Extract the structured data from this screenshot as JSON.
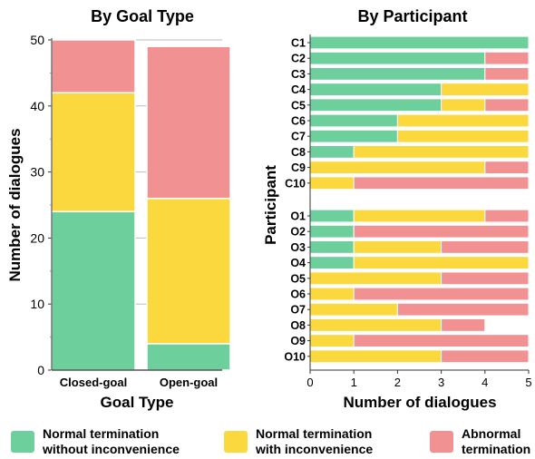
{
  "colors": {
    "normal_no_inconvenience": "#6ccf9c",
    "normal_with_inconvenience": "#fbd93e",
    "abnormal": "#f29192"
  },
  "legend": [
    {
      "key": "normal_no_inconvenience",
      "line1": "Normal termination",
      "line2": "without inconvenience"
    },
    {
      "key": "normal_with_inconvenience",
      "line1": "Normal termination",
      "line2": "with inconvenience"
    },
    {
      "key": "abnormal",
      "line1": "Abnormal",
      "line2": "termination"
    }
  ],
  "chart_data": [
    {
      "type": "bar",
      "stacked": true,
      "orientation": "vertical",
      "title": "By Goal Type",
      "xlabel": "Goal Type",
      "ylabel": "Number of dialogues",
      "ylim": [
        0,
        50
      ],
      "yticks": [
        0,
        10,
        20,
        30,
        40,
        50
      ],
      "grid": true,
      "categories": [
        "Closed-goal",
        "Open-goal"
      ],
      "series": [
        {
          "key": "normal_no_inconvenience",
          "values": [
            24,
            4
          ]
        },
        {
          "key": "normal_with_inconvenience",
          "values": [
            18,
            22
          ]
        },
        {
          "key": "abnormal",
          "values": [
            8,
            23
          ]
        }
      ]
    },
    {
      "type": "bar",
      "stacked": true,
      "orientation": "horizontal",
      "title": "By Participant",
      "xlabel": "Number of dialogues",
      "ylabel": "Participant",
      "xlim": [
        0,
        5
      ],
      "xticks": [
        0,
        1,
        2,
        3,
        4,
        5
      ],
      "grid": false,
      "categories": [
        "C1",
        "C2",
        "C3",
        "C4",
        "C5",
        "C6",
        "C7",
        "C8",
        "C9",
        "C10",
        "O1",
        "O2",
        "O3",
        "O4",
        "O5",
        "O6",
        "O7",
        "O8",
        "O9",
        "O10"
      ],
      "series": [
        {
          "key": "normal_no_inconvenience",
          "values": [
            5,
            4,
            4,
            3,
            3,
            2,
            2,
            1,
            0,
            0,
            1,
            1,
            1,
            1,
            0,
            0,
            0,
            0,
            0,
            0
          ]
        },
        {
          "key": "normal_with_inconvenience",
          "values": [
            0,
            0,
            0,
            2,
            1,
            3,
            3,
            4,
            4,
            1,
            3,
            0,
            2,
            4,
            3,
            1,
            2,
            3,
            1,
            3
          ]
        },
        {
          "key": "abnormal",
          "values": [
            0,
            1,
            1,
            0,
            1,
            0,
            0,
            0,
            1,
            4,
            1,
            4,
            2,
            0,
            2,
            4,
            3,
            1,
            4,
            2
          ]
        }
      ]
    }
  ]
}
